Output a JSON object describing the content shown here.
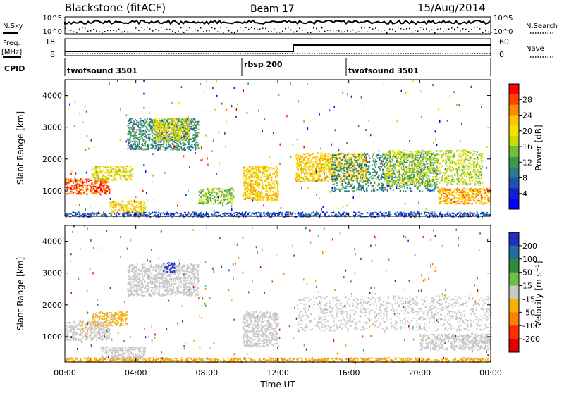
{
  "header": {
    "station": "Blackstone (fitACF)",
    "beam": "Beam 17",
    "date": "15/Aug/2014"
  },
  "top_panels": {
    "nsky_label": "N.Sky",
    "nsearch_label": "N.Search",
    "freq_label": "Freq.",
    "freq_unit": "[MHz]",
    "nave_label": "Nave",
    "cpid_label": "CPID",
    "left_ticks_noise": [
      "10^5",
      "10^0"
    ],
    "right_ticks_noise": [
      "10^5",
      "10^0"
    ],
    "left_ticks_freq": [
      "18",
      "8"
    ],
    "right_ticks_nave": [
      "60",
      "0"
    ],
    "cpid_segments": [
      {
        "label": "twofsound 3501",
        "start_hour": 0
      },
      {
        "label": "rbsp 200",
        "start_hour": 10
      },
      {
        "label": "twofsound 3501",
        "start_hour": 16
      }
    ]
  },
  "x_axis": {
    "label": "Time UT",
    "ticks": [
      "00:00",
      "04:00",
      "08:00",
      "12:00",
      "16:00",
      "20:00",
      "00:00"
    ],
    "range_hours": [
      0,
      24
    ]
  },
  "power_colorbar": {
    "label": "Power [dB]",
    "ticks": [
      "28",
      "24",
      "20",
      "16",
      "12",
      "8",
      "4"
    ],
    "colors": [
      "#ff0000",
      "#ff4400",
      "#ff8800",
      "#ffc400",
      "#f8e000",
      "#c8dc00",
      "#70c040",
      "#3a9a50",
      "#2a7a90",
      "#2050b0",
      "#1020d0",
      "#0000ff"
    ]
  },
  "velocity_colorbar": {
    "label": "Velocity [m s⁻¹]",
    "ticks": [
      "200",
      "100",
      "50",
      "15",
      "-15",
      "-50",
      "-100",
      "-200"
    ],
    "colors": [
      "#2030c0",
      "#1e6ea0",
      "#2e8a40",
      "#6cc040",
      "#c8c8c8",
      "#f8b000",
      "#ff8000",
      "#ff3000",
      "#e00000"
    ]
  },
  "chart_data": [
    {
      "type": "heatmap",
      "title": "Power",
      "xlabel": "Time UT",
      "ylabel": "Slant Range [km]",
      "y_ticks": [
        "1000",
        "2000",
        "3000",
        "4000"
      ],
      "ylim": [
        200,
        4500
      ],
      "xlim_hours": [
        0,
        24
      ],
      "zlabel": "Power [dB]",
      "zlim": [
        0,
        30
      ],
      "bands": [
        {
          "t0": 0.0,
          "t1": 2.5,
          "r0": 900,
          "r1": 1400,
          "level": 26
        },
        {
          "t0": 1.5,
          "t1": 3.8,
          "r0": 1350,
          "r1": 1800,
          "level": 18
        },
        {
          "t0": 2.5,
          "t1": 4.5,
          "r0": 300,
          "r1": 700,
          "level": 20
        },
        {
          "t0": 3.5,
          "t1": 7.5,
          "r0": 2300,
          "r1": 3300,
          "level": 10
        },
        {
          "t0": 5.0,
          "t1": 7.0,
          "r0": 2600,
          "r1": 3300,
          "level": 18
        },
        {
          "t0": 7.5,
          "t1": 9.5,
          "r0": 600,
          "r1": 1100,
          "level": 14
        },
        {
          "t0": 10.0,
          "t1": 12.0,
          "r0": 700,
          "r1": 1800,
          "level": 20
        },
        {
          "t0": 13.0,
          "t1": 17.0,
          "r0": 1300,
          "r1": 2200,
          "level": 20
        },
        {
          "t0": 15.0,
          "t1": 21.0,
          "r0": 1000,
          "r1": 2200,
          "level": 10
        },
        {
          "t0": 18.0,
          "t1": 23.5,
          "r0": 1200,
          "r1": 2300,
          "level": 16
        },
        {
          "t0": 21.0,
          "t1": 24.0,
          "r0": 600,
          "r1": 1100,
          "level": 22
        },
        {
          "t0": 0.0,
          "t1": 24.0,
          "r0": 200,
          "r1": 350,
          "level": 6
        }
      ]
    },
    {
      "type": "heatmap",
      "title": "Velocity",
      "xlabel": "Time UT",
      "ylabel": "Slant Range [km]",
      "y_ticks": [
        "1000",
        "2000",
        "3000",
        "4000"
      ],
      "ylim": [
        200,
        4500
      ],
      "xlim_hours": [
        0,
        24
      ],
      "zlabel": "Velocity [m s⁻¹]",
      "zlim": [
        -200,
        200
      ],
      "bands": [
        {
          "t0": 0.0,
          "t1": 2.5,
          "r0": 900,
          "r1": 1500,
          "level": -10
        },
        {
          "t0": 1.5,
          "t1": 3.5,
          "r0": 1350,
          "r1": 1800,
          "level": -30
        },
        {
          "t0": 2.0,
          "t1": 4.5,
          "r0": 250,
          "r1": 700,
          "level": -5
        },
        {
          "t0": 3.5,
          "t1": 7.5,
          "r0": 2300,
          "r1": 3300,
          "level": 5
        },
        {
          "t0": 5.5,
          "t1": 6.2,
          "r0": 3050,
          "r1": 3350,
          "level": 180
        },
        {
          "t0": 10.0,
          "t1": 12.0,
          "r0": 700,
          "r1": 1800,
          "level": 5
        },
        {
          "t0": 13.0,
          "t1": 24.0,
          "r0": 1200,
          "r1": 2300,
          "level": 0
        },
        {
          "t0": 20.0,
          "t1": 24.0,
          "r0": 600,
          "r1": 1100,
          "level": 0
        },
        {
          "t0": 0.0,
          "t1": 24.0,
          "r0": 200,
          "r1": 350,
          "level": -60
        }
      ]
    }
  ]
}
